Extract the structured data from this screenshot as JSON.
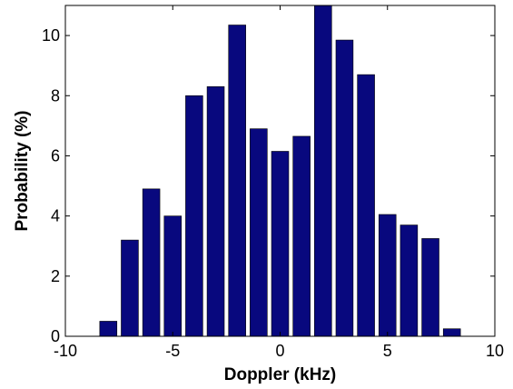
{
  "chart_data": {
    "type": "bar",
    "xlabel": "Doppler (kHz)",
    "ylabel": "Probability (%)",
    "xlim": [
      -10,
      10
    ],
    "ylim": [
      0,
      11
    ],
    "xticks": [
      -10,
      -5,
      0,
      5,
      10
    ],
    "yticks": [
      0,
      2,
      4,
      6,
      8,
      10
    ],
    "x": [
      -8,
      -7,
      -6,
      -5,
      -4,
      -3,
      -2,
      -1,
      0,
      1,
      2,
      3,
      4,
      5,
      6,
      7,
      8
    ],
    "values": [
      0.5,
      3.2,
      4.9,
      4.0,
      8.0,
      8.3,
      10.35,
      6.9,
      6.15,
      6.65,
      11.0,
      9.85,
      8.7,
      4.05,
      3.7,
      3.25,
      0.25
    ],
    "bar_color": "#08087e",
    "grid": false,
    "legend": "none"
  }
}
